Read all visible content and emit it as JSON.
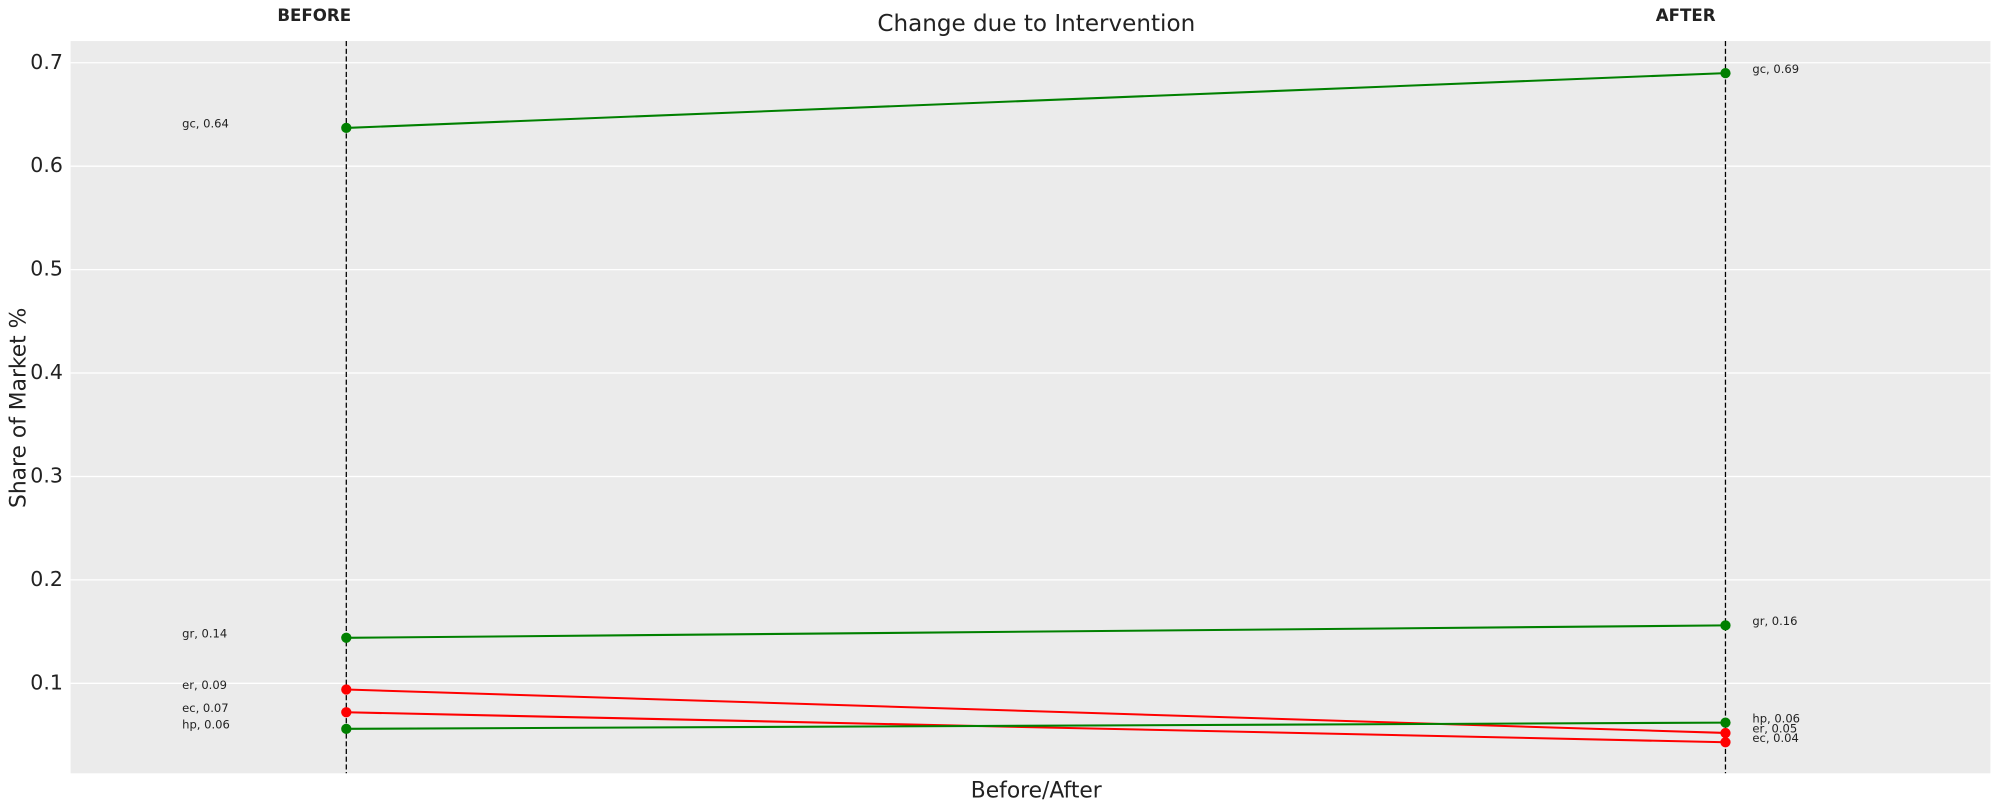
{
  "chart_data": {
    "type": "slope",
    "title": "Change due to Intervention",
    "x_label": "Before/After",
    "y_label": "Share of Market %",
    "categories": [
      "BEFORE",
      "AFTER"
    ],
    "series": [
      {
        "name": "gc",
        "color": "#008000",
        "values": [
          0.637,
          0.69
        ],
        "value_labels": [
          "gc, 0.64",
          "gc, 0.69"
        ]
      },
      {
        "name": "gr",
        "color": "#008000",
        "values": [
          0.144,
          0.156
        ],
        "value_labels": [
          "gr, 0.14",
          "gr, 0.16"
        ]
      },
      {
        "name": "er",
        "color": "#ff0000",
        "values": [
          0.094,
          0.052
        ],
        "value_labels": [
          "er, 0.09",
          "er, 0.05"
        ]
      },
      {
        "name": "ec",
        "color": "#ff0000",
        "values": [
          0.072,
          0.043
        ],
        "value_labels": [
          "ec, 0.07",
          "ec, 0.04"
        ]
      },
      {
        "name": "hp",
        "color": "#008000",
        "values": [
          0.056,
          0.062
        ],
        "value_labels": [
          "hp, 0.06",
          "hp, 0.06"
        ]
      }
    ],
    "ylim": [
      0.013,
      0.721
    ],
    "yticks": [
      0.1,
      0.2,
      0.3,
      0.4,
      0.5,
      0.6,
      0.7
    ],
    "grid": true
  }
}
